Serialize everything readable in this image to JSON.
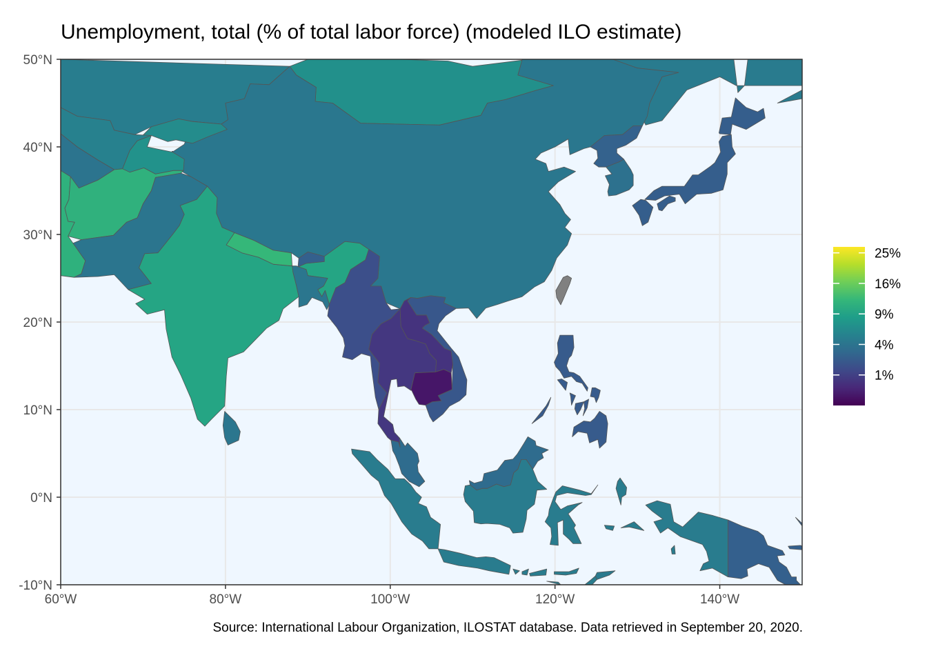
{
  "title": "Unemployment, total (% of total labor force) (modeled ILO estimate)",
  "caption": "Source: International Labour Organization, ILOSTAT database. Data retrieved in September 20, 2020.",
  "colors": {
    "ocean": "#eff7ff",
    "grid": "#e8e8e8",
    "no_data": "#808080",
    "panel_border": "#333333",
    "viridis": [
      "#440154",
      "#482878",
      "#3e4989",
      "#31688e",
      "#26828e",
      "#1f9e89",
      "#35b779",
      "#6ece58",
      "#b5de2b",
      "#fde725"
    ]
  },
  "chart_data": {
    "type": "choropleth",
    "xlim": [
      60,
      150
    ],
    "ylim": [
      -10,
      50
    ],
    "x_ticks": [
      {
        "value": 60,
        "label": "60°W"
      },
      {
        "value": 80,
        "label": "80°W"
      },
      {
        "value": 100,
        "label": "100°W"
      },
      {
        "value": 120,
        "label": "120°W"
      },
      {
        "value": 140,
        "label": "140°W"
      }
    ],
    "y_ticks": [
      {
        "value": 50,
        "label": "50°N"
      },
      {
        "value": 40,
        "label": "40°N"
      },
      {
        "value": 30,
        "label": "30°N"
      },
      {
        "value": 20,
        "label": "20°N"
      },
      {
        "value": 10,
        "label": "10°N"
      },
      {
        "value": 0,
        "label": "0°N"
      },
      {
        "value": -10,
        "label": "-10°N"
      }
    ],
    "legend": {
      "position": "right",
      "scale": "sqrt",
      "range": [
        0,
        27
      ],
      "ticks": [
        {
          "value": 25,
          "label": "25%"
        },
        {
          "value": 16,
          "label": "16%"
        },
        {
          "value": 9,
          "label": "9%"
        },
        {
          "value": 4,
          "label": "4%"
        },
        {
          "value": 1,
          "label": "1%"
        }
      ]
    },
    "countries": [
      {
        "name": "Mongolia",
        "value": 6.8
      },
      {
        "name": "Kazakhstan",
        "value": 4.8
      },
      {
        "name": "Russia",
        "value": 4.6
      },
      {
        "name": "China",
        "value": 4.3
      },
      {
        "name": "Kyrgyzstan",
        "value": 6.3
      },
      {
        "name": "Uzbekistan",
        "value": 5.2
      },
      {
        "name": "Turkmenistan",
        "value": 4.0
      },
      {
        "name": "Tajikistan",
        "value": 7.0
      },
      {
        "name": "Iran",
        "value": 11.0
      },
      {
        "name": "Afghanistan",
        "value": 11.1
      },
      {
        "name": "Pakistan",
        "value": 4.1
      },
      {
        "name": "India",
        "value": 9.3
      },
      {
        "name": "Nepal",
        "value": 12.0
      },
      {
        "name": "Bhutan",
        "value": 2.5
      },
      {
        "name": "Bangladesh",
        "value": 4.2
      },
      {
        "name": "Myanmar",
        "value": 1.6
      },
      {
        "name": "Thailand",
        "value": 0.7
      },
      {
        "name": "Laos",
        "value": 0.6
      },
      {
        "name": "Vietnam",
        "value": 2.0
      },
      {
        "name": "Cambodia",
        "value": 0.1
      },
      {
        "name": "Malaysia",
        "value": 3.3
      },
      {
        "name": "Indonesia",
        "value": 4.7
      },
      {
        "name": "Philippines",
        "value": 2.2
      },
      {
        "name": "Papua New Guinea",
        "value": 2.5
      },
      {
        "name": "Timor-Leste",
        "value": 4.5
      },
      {
        "name": "Sri Lanka",
        "value": 4.2
      },
      {
        "name": "South Korea",
        "value": 3.7
      },
      {
        "name": "North Korea",
        "value": 2.6
      },
      {
        "name": "Japan",
        "value": 2.4
      },
      {
        "name": "Taiwan",
        "value": null
      }
    ]
  }
}
